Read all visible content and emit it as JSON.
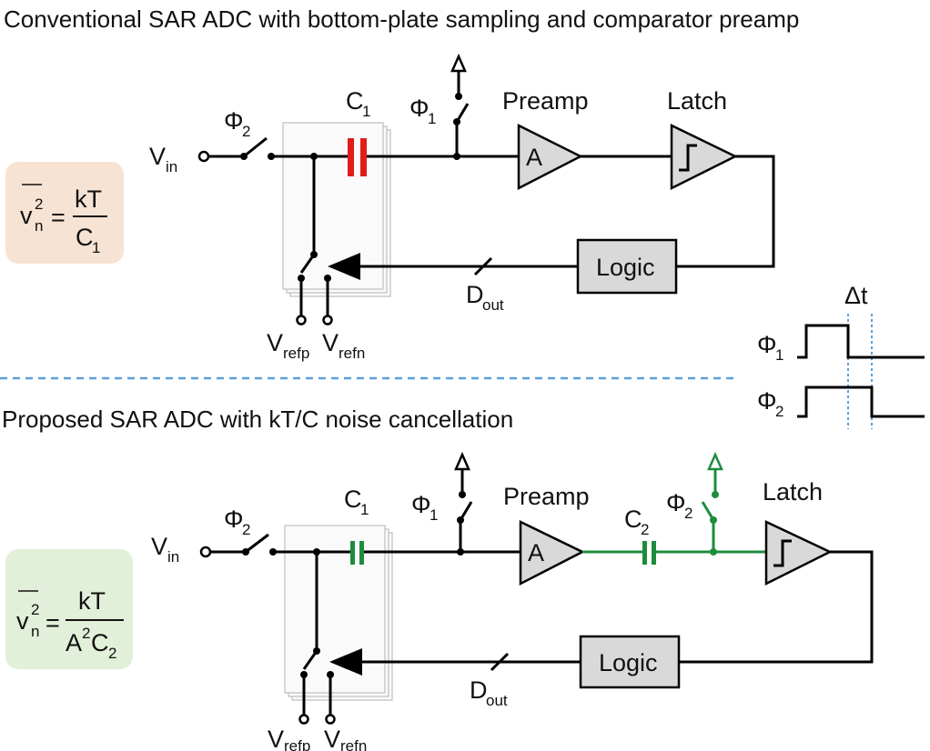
{
  "top": {
    "title": "Conventional SAR ADC with bottom-plate sampling and comparator preamp",
    "vin_label": "V",
    "vin_sub": "in",
    "phi2_label": "Φ",
    "phi2_sub": "2",
    "phi1_label": "Φ",
    "phi1_sub": "1",
    "c1_label": "C",
    "c1_sub": "1",
    "preamp_label": "Preamp",
    "amp_symbol": "A",
    "latch_label": "Latch",
    "logic_label": "Logic",
    "dout_label": "D",
    "dout_sub": "out",
    "vrefp_label": "V",
    "vrefp_sub": "refp",
    "vrefn_label": "V",
    "vrefn_sub": "refn",
    "noise_num": "kT",
    "noise_den": "C",
    "noise_den_sub": "1",
    "cap_color": "#e21b1b",
    "badge_color": "#f6e3d3"
  },
  "bottom": {
    "title": "Proposed SAR ADC with kT/C noise cancellation",
    "vin_label": "V",
    "vin_sub": "in",
    "phi2_label": "Φ",
    "phi2_sub": "2",
    "phi1_label": "Φ",
    "phi1_sub": "1",
    "c1_label": "C",
    "c1_sub": "1",
    "c2_label": "C",
    "c2_sub": "2",
    "phi2b_label": "Φ",
    "phi2b_sub": "2",
    "preamp_label": "Preamp",
    "amp_symbol": "A",
    "latch_label": "Latch",
    "logic_label": "Logic",
    "dout_label": "D",
    "dout_sub": "out",
    "vrefp_label": "V",
    "vrefp_sub": "refp",
    "vrefn_label": "V",
    "vrefn_sub": "refn",
    "noise_num": "kT",
    "noise_den_a": "A",
    "noise_den_a_sup": "2",
    "noise_den_c": "C",
    "noise_den_sub": "2",
    "accent_color": "#1e8c3c",
    "badge_color": "#e2efd9"
  },
  "timing": {
    "delta_label": "Δt",
    "phi1_label": "Φ",
    "phi1_sub": "1",
    "phi2_label": "Φ",
    "phi2_sub": "2",
    "marker_color": "#5aa0dc"
  },
  "noise_lhs": {
    "v": "v",
    "sup": "2",
    "sub": "n",
    "eq": "="
  },
  "divider_color": "#5aa0dc"
}
